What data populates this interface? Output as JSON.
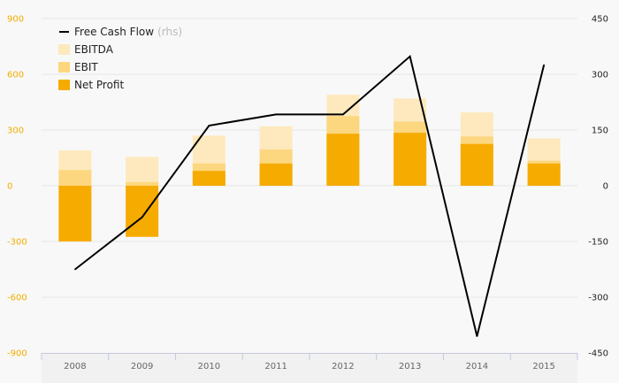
{
  "chart_data": {
    "type": "bar",
    "categories": [
      "2008",
      "2009",
      "2010",
      "2011",
      "2012",
      "2013",
      "2014",
      "2015"
    ],
    "y_left": {
      "ylim": [
        -900,
        900
      ],
      "ticks": [
        "900",
        "600",
        "300",
        "0",
        "-300",
        "-600",
        "-900"
      ]
    },
    "y_right": {
      "ylim": [
        -450,
        450
      ],
      "ticks": [
        "450",
        "300",
        "150",
        "0",
        "-150",
        "-300",
        "-450"
      ]
    },
    "series": [
      {
        "name": "EBITDA",
        "type": "bar",
        "axis": "left",
        "color": "#fde9bd",
        "values": [
          190,
          155,
          270,
          320,
          490,
          470,
          395,
          255
        ]
      },
      {
        "name": "EBIT",
        "type": "bar",
        "axis": "left",
        "color": "#fcd77f",
        "values": [
          85,
          20,
          120,
          195,
          375,
          345,
          265,
          135
        ]
      },
      {
        "name": "Net Profit",
        "type": "bar",
        "axis": "left",
        "color": "#f6ab00",
        "values": [
          -300,
          -275,
          80,
          120,
          280,
          285,
          225,
          120
        ]
      },
      {
        "name": "Free Cash Flow",
        "name_suffix": "(rhs)",
        "type": "line",
        "axis": "right",
        "color": "#000000",
        "values": [
          -225,
          -85,
          162,
          192,
          192,
          348,
          -405,
          325
        ]
      }
    ],
    "legend": {
      "position": "top-left"
    },
    "grid": true
  }
}
